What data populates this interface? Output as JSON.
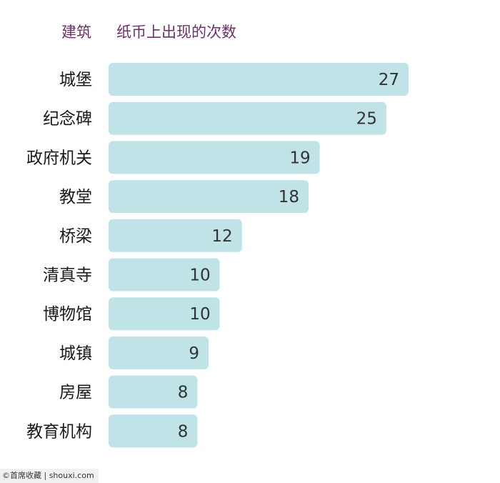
{
  "chart_data": {
    "type": "bar",
    "orientation": "horizontal",
    "category_header": "建筑",
    "value_header": "纸币上出现的次数",
    "categories": [
      "城堡",
      "纪念碑",
      "政府机关",
      "教堂",
      "桥梁",
      "清真寺",
      "博物馆",
      "城镇",
      "房屋",
      "教育机构"
    ],
    "values": [
      27,
      25,
      19,
      18,
      12,
      10,
      10,
      9,
      8,
      8
    ],
    "xlim": [
      0,
      27
    ],
    "grid": false,
    "legend": "none",
    "bar_color": "#bfe3e6",
    "header_color": "#6e2f6b"
  },
  "footer": {
    "watermark": "©首席收藏 | shouxi.com"
  }
}
